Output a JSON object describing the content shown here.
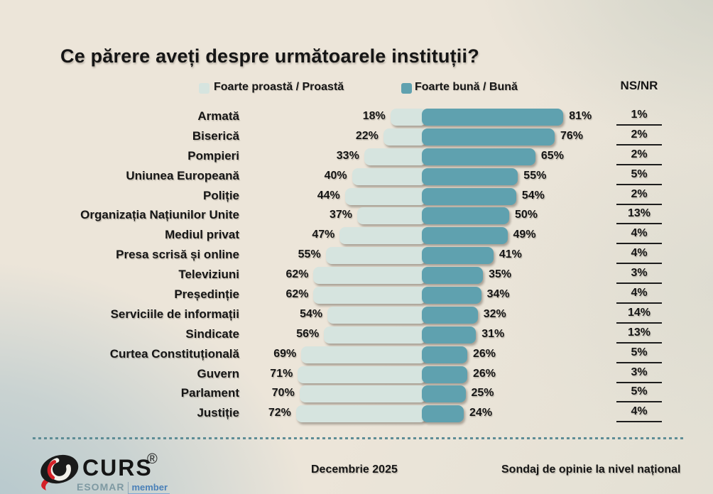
{
  "title": "Ce părere aveți despre următoarele instituții?",
  "legend": {
    "bad_label": "Foarte proastă / Proastă",
    "good_label": "Foarte bună / Bună",
    "nsnr_label": "NS/NR"
  },
  "colors": {
    "bad_bar": "#d6e4df",
    "good_bar": "#5fa1af",
    "text": "#151515",
    "dotted_separator": "#5e8d96",
    "esomar": "#7e99a2",
    "member": "#4a80b8",
    "logo_red": "#d42027",
    "logo_black": "#1a1a1a"
  },
  "chart_data": {
    "type": "bar",
    "orientation": "horizontal-diverging",
    "unit": "%",
    "title": "Ce părere aveți despre următoarele instituții?",
    "legend_position": "top",
    "categories": [
      "Armată",
      "Biserică",
      "Pompieri",
      "Uniunea Europeană",
      "Poliție",
      "Organizația Națiunilor Unite",
      "Mediul privat",
      "Presa scrisă și online",
      "Televiziuni",
      "Președinție",
      "Serviciile de informații",
      "Sindicate",
      "Curtea Constituțională",
      "Guvern",
      "Parlament",
      "Justiție"
    ],
    "series": [
      {
        "name": "Foarte proastă / Proastă",
        "values": [
          18,
          22,
          33,
          40,
          44,
          37,
          47,
          55,
          62,
          62,
          54,
          56,
          69,
          71,
          70,
          72
        ]
      },
      {
        "name": "Foarte bună / Bună",
        "values": [
          81,
          76,
          65,
          55,
          54,
          50,
          49,
          41,
          35,
          34,
          32,
          31,
          26,
          26,
          25,
          24
        ]
      },
      {
        "name": "NS/NR",
        "values": [
          1,
          2,
          2,
          5,
          2,
          13,
          4,
          4,
          3,
          4,
          14,
          13,
          5,
          3,
          5,
          4
        ]
      }
    ]
  },
  "footer": {
    "logo_text": "CURS",
    "registered_mark": "®",
    "logo_subtext_1": "ESOMAR",
    "logo_subtext_2": "member",
    "date": "Decembrie 2025",
    "note": "Sondaj de opinie la nivel național"
  }
}
